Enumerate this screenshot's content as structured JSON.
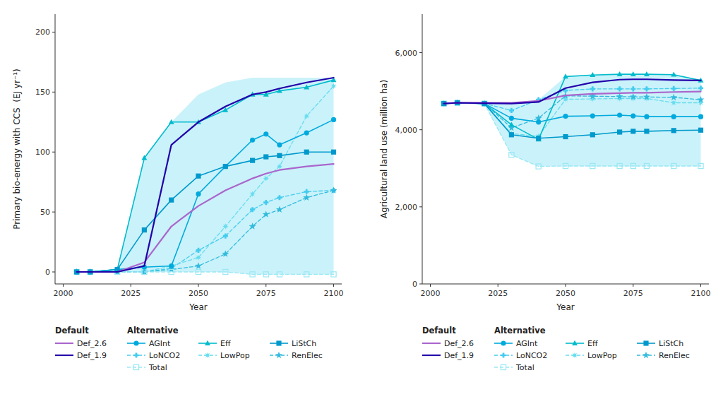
{
  "chart_data": [
    {
      "type": "line",
      "x": [
        2005,
        2010,
        2020,
        2030,
        2040,
        2050,
        2060,
        2070,
        2075,
        2080,
        2090,
        2100
      ],
      "xlabel": "Year",
      "ylabel": "Primary bio-energy with CCS  (EJ yr⁻¹)",
      "xlim": [
        1997,
        2103
      ],
      "ylim": [
        -10,
        215
      ],
      "xticks": [
        2000,
        2025,
        2050,
        2075,
        2100
      ],
      "yticks": [
        0,
        50,
        100,
        150,
        200
      ],
      "grid": false,
      "legend": "below",
      "annotations": [
        "Default",
        "Alternative"
      ],
      "band": {
        "color": "#B8EEF8",
        "upper": [
          0,
          0,
          2,
          95,
          125,
          148,
          158,
          162,
          162,
          162,
          162,
          162
        ],
        "lower": [
          0,
          0,
          0,
          0,
          0,
          0,
          0,
          -2,
          -2,
          -2,
          -2,
          -2
        ]
      },
      "series": [
        {
          "name": "Def_2.6",
          "color": "#AA66CC",
          "line_style": "solid",
          "values": [
            0,
            0,
            0,
            8,
            38,
            55,
            68,
            78,
            82,
            85,
            88,
            90
          ]
        },
        {
          "name": "Def_1.9",
          "color": "#2200AA",
          "line_style": "solid",
          "values": [
            0,
            0,
            0,
            5,
            106,
            125,
            138,
            148,
            150,
            153,
            158,
            162
          ]
        },
        {
          "name": "AGInt",
          "color": "#00AADD",
          "line_style": "solid",
          "marker": "circle",
          "values": [
            0,
            0,
            2,
            4,
            5,
            65,
            88,
            110,
            115,
            106,
            116,
            127
          ]
        },
        {
          "name": "Eff",
          "color": "#00BBCC",
          "line_style": "solid",
          "marker": "triangle",
          "values": [
            0,
            0,
            2,
            95,
            125,
            125,
            135,
            148,
            148,
            151,
            154,
            160
          ]
        },
        {
          "name": "LiStCh",
          "color": "#0099CC",
          "line_style": "solid",
          "marker": "square",
          "values": [
            0,
            0,
            2,
            35,
            60,
            80,
            88,
            93,
            96,
            97,
            100,
            100
          ]
        },
        {
          "name": "LoNCO2",
          "color": "#44CCEE",
          "line_style": "dashed",
          "marker": "plus",
          "values": [
            0,
            0,
            0,
            0,
            3,
            18,
            30,
            52,
            58,
            62,
            67,
            68
          ]
        },
        {
          "name": "LowPop",
          "color": "#66DDEE",
          "line_style": "dashed",
          "marker": "octagram",
          "values": [
            0,
            0,
            0,
            0,
            5,
            12,
            38,
            65,
            78,
            88,
            130,
            155
          ]
        },
        {
          "name": "RenElec",
          "color": "#33BBDD",
          "line_style": "dashed",
          "marker": "star",
          "values": [
            0,
            0,
            0,
            0,
            2,
            5,
            15,
            38,
            48,
            52,
            62,
            68
          ]
        },
        {
          "name": "Total",
          "color": "#99E8F4",
          "line_style": "dashed",
          "marker": "square-open",
          "values": [
            0,
            0,
            0,
            0,
            0,
            0,
            0,
            -2,
            -2,
            -2,
            -2,
            -2
          ]
        }
      ]
    },
    {
      "type": "line",
      "x": [
        2005,
        2010,
        2020,
        2030,
        2040,
        2050,
        2060,
        2070,
        2075,
        2080,
        2090,
        2100
      ],
      "xlabel": "Year",
      "ylabel": "Agricultural land use (million ha)",
      "xlim": [
        1997,
        2103
      ],
      "ylim": [
        0,
        7000
      ],
      "xticks": [
        2000,
        2025,
        2050,
        2075,
        2100
      ],
      "yticks": [
        0,
        {
          "value": 2000,
          "label": "2,000"
        },
        {
          "value": 4000,
          "label": "4,000"
        },
        {
          "value": 6000,
          "label": "6,000"
        }
      ],
      "grid": false,
      "legend": "below",
      "annotations": [
        "Default",
        "Alternative"
      ],
      "band": {
        "color": "#B8EEF8",
        "upper": [
          4680,
          4700,
          4700,
          4700,
          4780,
          5380,
          5420,
          5440,
          5440,
          5440,
          5430,
          5280
        ],
        "lower": [
          4680,
          4700,
          4680,
          3350,
          3050,
          3050,
          3050,
          3050,
          3050,
          3050,
          3050,
          3050
        ]
      },
      "series": [
        {
          "name": "Def_2.6",
          "color": "#AA66CC",
          "line_style": "solid",
          "values": [
            4680,
            4700,
            4700,
            4700,
            4750,
            4890,
            4930,
            4950,
            4960,
            4960,
            4980,
            4990
          ]
        },
        {
          "name": "Def_1.9",
          "color": "#2200AA",
          "line_style": "solid",
          "values": [
            4680,
            4700,
            4690,
            4680,
            4720,
            5080,
            5230,
            5300,
            5310,
            5310,
            5290,
            5280
          ]
        },
        {
          "name": "AGInt",
          "color": "#00AADD",
          "line_style": "solid",
          "marker": "circle",
          "values": [
            4680,
            4700,
            4680,
            4300,
            4200,
            4350,
            4360,
            4380,
            4360,
            4340,
            4340,
            4340
          ]
        },
        {
          "name": "Eff",
          "color": "#00BBCC",
          "line_style": "solid",
          "marker": "triangle",
          "values": [
            4680,
            4700,
            4680,
            4130,
            3750,
            5380,
            5420,
            5440,
            5440,
            5440,
            5430,
            5280
          ]
        },
        {
          "name": "LiStCh",
          "color": "#0099CC",
          "line_style": "solid",
          "marker": "square",
          "values": [
            4680,
            4700,
            4680,
            3870,
            3780,
            3820,
            3870,
            3940,
            3960,
            3960,
            3980,
            3990
          ]
        },
        {
          "name": "LoNCO2",
          "color": "#44CCEE",
          "line_style": "dashed",
          "marker": "plus",
          "values": [
            4680,
            4700,
            4680,
            4500,
            4780,
            5020,
            5060,
            5060,
            5060,
            5060,
            5070,
            5080
          ]
        },
        {
          "name": "LowPop",
          "color": "#66DDEE",
          "line_style": "dashed",
          "marker": "octagram",
          "values": [
            4680,
            4700,
            4680,
            3900,
            3830,
            4790,
            4800,
            4810,
            4810,
            4810,
            4700,
            4700
          ]
        },
        {
          "name": "RenElec",
          "color": "#33BBDD",
          "line_style": "dashed",
          "marker": "star",
          "values": [
            4680,
            4700,
            4680,
            4050,
            4300,
            4880,
            4870,
            4860,
            4855,
            4850,
            4840,
            4780
          ]
        },
        {
          "name": "Total",
          "color": "#99E8F4",
          "line_style": "dashed",
          "marker": "square-open",
          "values": [
            4680,
            4700,
            4680,
            3350,
            3050,
            3060,
            3060,
            3060,
            3060,
            3060,
            3060,
            3060
          ]
        }
      ]
    }
  ]
}
